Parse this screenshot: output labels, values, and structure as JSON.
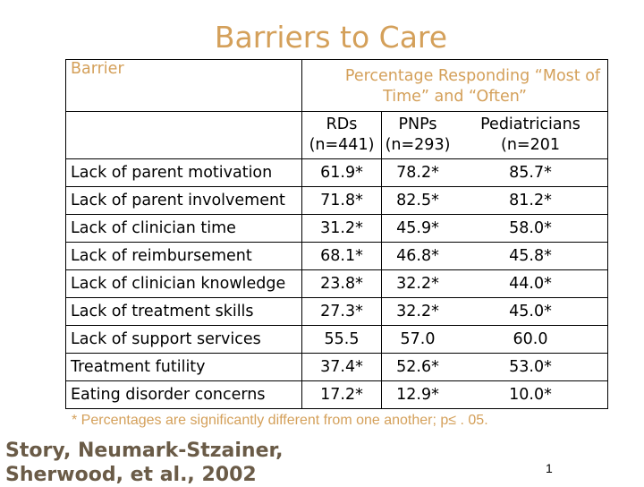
{
  "title": "Barriers to Care",
  "table": {
    "header_barrier": "Barrier",
    "header_pct_line1": "Percentage Responding “Most of",
    "header_pct_line2": "Time” and “Often”",
    "col_rd_name": "RDs",
    "col_rd_n": "(n=441)",
    "col_pnp_name": "PNPs",
    "col_pnp_n": "(n=293)",
    "col_ped_name": "Pediatricians",
    "col_ped_n": "(n=201",
    "rows": [
      {
        "barrier": "Lack of parent motivation",
        "rd": "61.9*",
        "pnp": "78.2*",
        "ped": "85.7*"
      },
      {
        "barrier": "Lack of parent involvement",
        "rd": "71.8*",
        "pnp": "82.5*",
        "ped": "81.2*"
      },
      {
        "barrier": "Lack of clinician time",
        "rd": "31.2*",
        "pnp": "45.9*",
        "ped": "58.0*"
      },
      {
        "barrier": "Lack of reimbursement",
        "rd": "68.1*",
        "pnp": "46.8*",
        "ped": "45.8*"
      },
      {
        "barrier": "Lack of clinician knowledge",
        "rd": "23.8*",
        "pnp": "32.2*",
        "ped": "44.0*"
      },
      {
        "barrier": "Lack of treatment skills",
        "rd": "27.3*",
        "pnp": "32.2*",
        "ped": "45.0*"
      },
      {
        "barrier": "Lack of support services",
        "rd": "55.5",
        "pnp": "57.0",
        "ped": "60.0"
      },
      {
        "barrier": "Treatment futility",
        "rd": "37.4*",
        "pnp": "52.6*",
        "ped": "53.0*"
      },
      {
        "barrier": "Eating disorder concerns",
        "rd": "17.2*",
        "pnp": "12.9*",
        "ped": "10.0*"
      }
    ]
  },
  "footnote": "* Percentages are significantly different from one another; p≤ . 05.",
  "citation_line1": "Story, Neumark-Stzainer,",
  "citation_line2": "Sherwood, et al., 2002",
  "page_number": "1"
}
